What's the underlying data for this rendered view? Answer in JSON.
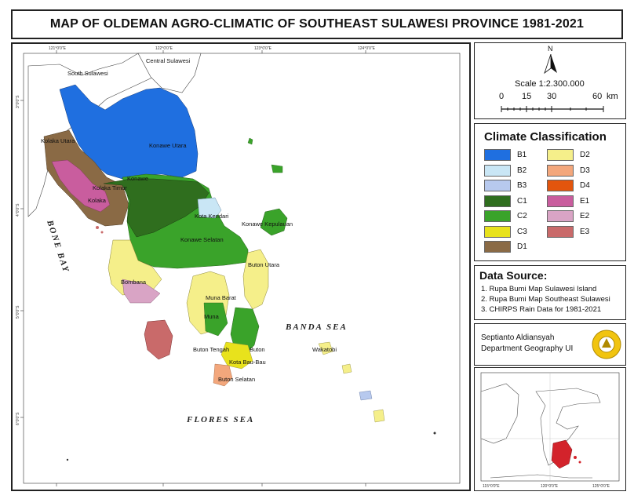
{
  "title": "MAP OF OLDEMAN AGRO-CLIMATIC OF SOUTHEAST SULAWESI PROVINCE 1981-2021",
  "map": {
    "lon_ticks": [
      "121°0'0\"E",
      "122°0'0\"E",
      "123°0'0\"E",
      "124°0'0\"E"
    ],
    "lat_ticks": [
      "3°0'0\"S",
      "4°0'0\"S",
      "5°0'0\"S",
      "6°0'0\"S"
    ],
    "place_labels": [
      {
        "id": "south-sulawesi",
        "text": "South Sulawesi"
      },
      {
        "id": "central-sulawesi",
        "text": "Central Sulawesi"
      },
      {
        "id": "kolaka-utara",
        "text": "Kolaka Utara"
      },
      {
        "id": "konawe-utara",
        "text": "Konawe Utara"
      },
      {
        "id": "konawe",
        "text": "Konawe"
      },
      {
        "id": "kolaka-timur",
        "text": "Kolaka Timur"
      },
      {
        "id": "kolaka",
        "text": "Kolaka"
      },
      {
        "id": "kota-kendari",
        "text": "Kota Kendari"
      },
      {
        "id": "konawe-kepulauan",
        "text": "Konawe Kepulauan"
      },
      {
        "id": "konawe-selatan",
        "text": "Konawe Selatan"
      },
      {
        "id": "bombana",
        "text": "Bombana"
      },
      {
        "id": "buton-utara",
        "text": "Buton Utara"
      },
      {
        "id": "muna-barat",
        "text": "Muna Barat"
      },
      {
        "id": "muna",
        "text": "Muna"
      },
      {
        "id": "buton-tengah",
        "text": "Buton Tengah"
      },
      {
        "id": "buton",
        "text": "Buton"
      },
      {
        "id": "kota-bau-bau",
        "text": "Kota Bau-Bau"
      },
      {
        "id": "buton-selatan",
        "text": "Buton Selatan"
      },
      {
        "id": "wakatobi",
        "text": "Wakatobi"
      }
    ],
    "seas": {
      "bone_bay": "BONE BAY",
      "banda_sea": "BANDA SEA",
      "flores_sea": "FLORES SEA"
    }
  },
  "north": {
    "letter": "N",
    "scale": "Scale 1:2.300.000",
    "bar_labels": [
      "0",
      "15",
      "30",
      "60"
    ],
    "unit": "km"
  },
  "legend": {
    "title": "Climate Classification",
    "items": [
      {
        "code": "B1",
        "color": "#1f6fe0"
      },
      {
        "code": "B2",
        "color": "#c9e6f5"
      },
      {
        "code": "B3",
        "color": "#b7c9ee"
      },
      {
        "code": "C1",
        "color": "#2f6e1e"
      },
      {
        "code": "C2",
        "color": "#3aa32a"
      },
      {
        "code": "C3",
        "color": "#e8e21c"
      },
      {
        "code": "D1",
        "color": "#8a6a45"
      },
      {
        "code": "D2",
        "color": "#f5ef8a"
      },
      {
        "code": "D3",
        "color": "#f3a77c"
      },
      {
        "code": "D4",
        "color": "#e3550d"
      },
      {
        "code": "E1",
        "color": "#c95d9e"
      },
      {
        "code": "E2",
        "color": "#d9a4c5"
      },
      {
        "code": "E3",
        "color": "#c96a6a"
      }
    ]
  },
  "data_source": {
    "title": "Data Source:",
    "lines": [
      "1. Rupa Bumi Map Sulawesi Island",
      "2. Rupa Bumi Map Southeast Sulawesi",
      "3. CHIRPS Rain Data for 1981-2021"
    ]
  },
  "author": {
    "name": "Septianto Aldiansyah",
    "dept": "Department Geography UI"
  },
  "inset": {
    "lon_ticks": [
      "115°0'0\"E",
      "120°0'0\"E",
      "125°0'0\"E"
    ]
  }
}
